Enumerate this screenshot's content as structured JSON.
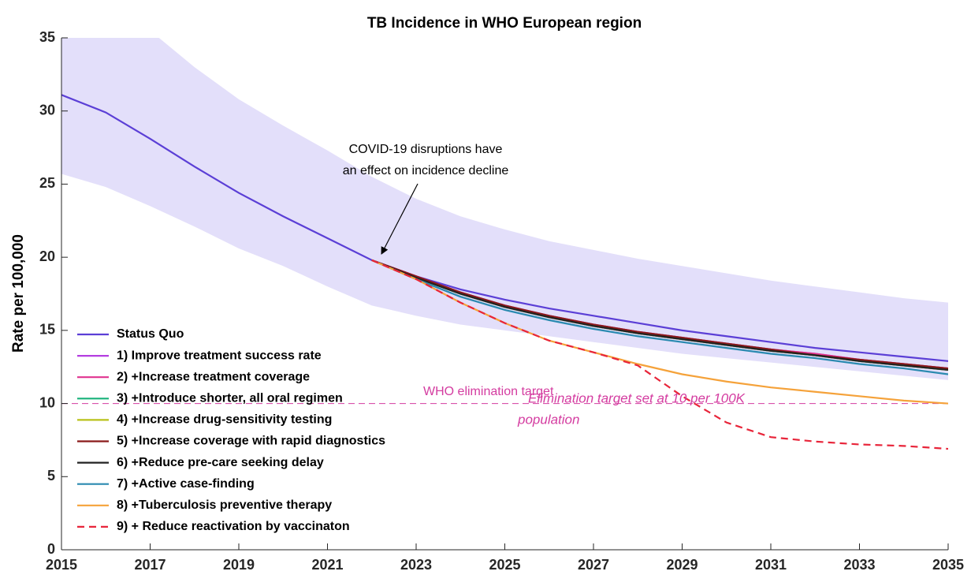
{
  "chart_data": {
    "type": "line",
    "title": "TB Incidence in WHO European region",
    "ylabel": "Rate per 100,000",
    "x": [
      2015,
      2016,
      2017,
      2018,
      2019,
      2020,
      2021,
      2022,
      2023,
      2024,
      2025,
      2026,
      2027,
      2028,
      2029,
      2030,
      2031,
      2032,
      2033,
      2034,
      2035
    ],
    "xlim": [
      2015,
      2035
    ],
    "xticks": [
      2015,
      2017,
      2019,
      2021,
      2023,
      2025,
      2027,
      2029,
      2031,
      2033,
      2035
    ],
    "ylim": [
      0,
      35
    ],
    "yticks": [
      0,
      5,
      10,
      15,
      20,
      25,
      30,
      35
    ],
    "legend": "lower left",
    "band": {
      "color": "#e3dffa",
      "upper": [
        38,
        37,
        35.5,
        33,
        30.8,
        29.0,
        27.3,
        25.5,
        24.0,
        22.8,
        21.9,
        21.1,
        20.5,
        19.9,
        19.4,
        18.9,
        18.4,
        18.0,
        17.6,
        17.2,
        16.9
      ],
      "lower": [
        25.7,
        24.8,
        23.5,
        22.1,
        20.6,
        19.4,
        18.0,
        16.7,
        16.0,
        15.4,
        15.0,
        14.6,
        14.2,
        13.8,
        13.4,
        13.1,
        12.8,
        12.5,
        12.2,
        11.9,
        11.6
      ]
    },
    "series": [
      {
        "name": "Status Quo",
        "color": "#5b3fd6",
        "values": [
          31.1,
          29.9,
          28.1,
          26.2,
          24.4,
          22.8,
          21.3,
          19.8,
          18.7,
          17.8,
          17.1,
          16.5,
          16.0,
          15.5,
          15.0,
          14.6,
          14.2,
          13.8,
          13.5,
          13.2,
          12.9
        ]
      },
      {
        "name": "1) Improve treatment success rate",
        "color": "#b43ee0",
        "values": [
          null,
          null,
          null,
          null,
          null,
          null,
          null,
          19.8,
          18.7,
          17.6,
          16.7,
          16.0,
          15.4,
          14.9,
          14.5,
          14.1,
          13.7,
          13.4,
          13.0,
          12.7,
          12.4
        ]
      },
      {
        "name": "2) +Increase treatment coverage",
        "color": "#e0338f",
        "values": [
          null,
          null,
          null,
          null,
          null,
          null,
          null,
          19.8,
          18.7,
          17.6,
          16.7,
          16.0,
          15.4,
          14.9,
          14.5,
          14.1,
          13.7,
          13.4,
          13.0,
          12.7,
          12.4
        ]
      },
      {
        "name": "3) +Introduce shorter, all oral regimen",
        "color": "#18b27a",
        "values": [
          null,
          null,
          null,
          null,
          null,
          null,
          null,
          19.8,
          18.6,
          17.5,
          16.6,
          15.9,
          15.3,
          14.8,
          14.4,
          14.0,
          13.6,
          13.3,
          12.9,
          12.6,
          12.3
        ]
      },
      {
        "name": "4) +Increase drug-sensitivity testing",
        "color": "#b8c21a",
        "values": [
          null,
          null,
          null,
          null,
          null,
          null,
          null,
          19.8,
          18.6,
          17.5,
          16.6,
          15.9,
          15.3,
          14.8,
          14.4,
          14.0,
          13.6,
          13.3,
          12.9,
          12.6,
          12.3
        ]
      },
      {
        "name": "5) +Increase coverage with rapid diagnostics",
        "color": "#8b1a1a",
        "values": [
          null,
          null,
          null,
          null,
          null,
          null,
          null,
          19.8,
          18.7,
          17.6,
          16.7,
          16.0,
          15.4,
          14.9,
          14.5,
          14.1,
          13.7,
          13.3,
          13.0,
          12.7,
          12.4
        ]
      },
      {
        "name": "6) +Reduce pre-care seeking delay",
        "color": "#222222",
        "values": [
          null,
          null,
          null,
          null,
          null,
          null,
          null,
          19.8,
          18.6,
          17.5,
          16.6,
          15.9,
          15.3,
          14.8,
          14.4,
          14.0,
          13.6,
          13.3,
          12.9,
          12.6,
          12.3
        ]
      },
      {
        "name": "7) +Active case-finding",
        "color": "#2a8ab0",
        "values": [
          null,
          null,
          null,
          null,
          null,
          null,
          null,
          19.8,
          18.5,
          17.3,
          16.4,
          15.7,
          15.1,
          14.6,
          14.2,
          13.8,
          13.4,
          13.1,
          12.7,
          12.4,
          12.0
        ]
      },
      {
        "name": "8) +Tuberculosis preventive therapy",
        "color": "#f5a23a",
        "values": [
          null,
          null,
          null,
          null,
          null,
          null,
          null,
          19.8,
          18.5,
          16.9,
          15.5,
          14.3,
          13.5,
          12.7,
          12.0,
          11.5,
          11.1,
          10.8,
          10.5,
          10.2,
          10.0
        ]
      },
      {
        "name": "9) + Reduce reactivation by vaccinaton",
        "color": "#e8253a",
        "dashed": true,
        "values": [
          null,
          null,
          null,
          null,
          null,
          null,
          null,
          19.8,
          18.5,
          16.9,
          15.5,
          14.3,
          13.5,
          12.6,
          10.5,
          8.7,
          7.7,
          7.4,
          7.2,
          7.1,
          6.9
        ]
      }
    ],
    "target": {
      "value": 10,
      "color": "#d43ca0",
      "label": "WHO elimination target",
      "note": [
        "Elimination target set at 10 per 100K",
        "population"
      ]
    },
    "annotation": [
      "COVID-19 disruptions have",
      "an effect on incidence decline"
    ]
  }
}
